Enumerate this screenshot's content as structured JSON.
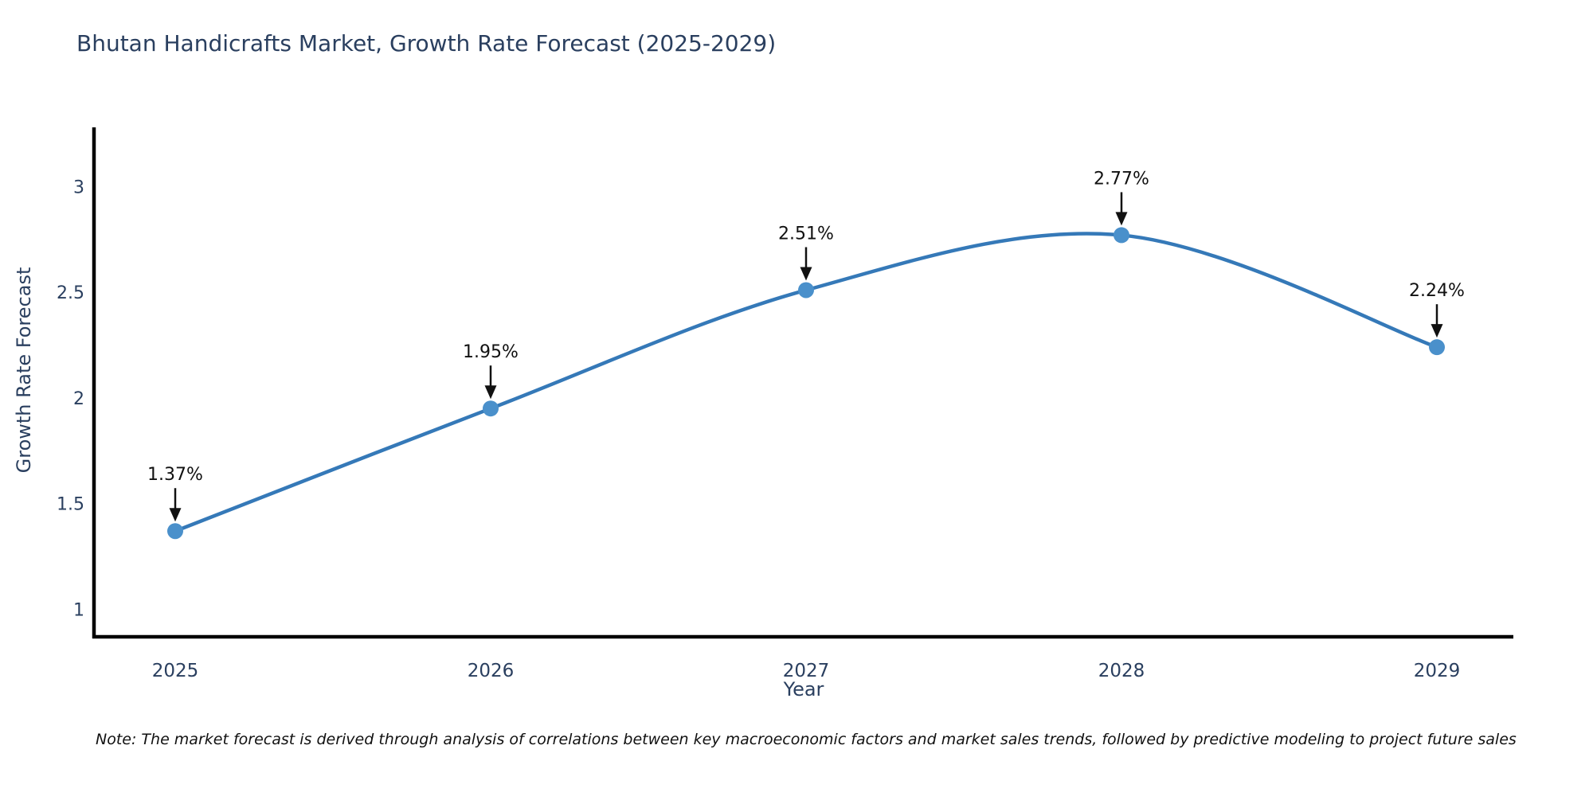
{
  "note": "Note: The market forecast is derived through analysis of correlations between key macroeconomic factors and market sales trends, followed by predictive modeling to project future sales",
  "chart_data": {
    "type": "line",
    "title": "Bhutan Handicrafts Market, Growth Rate Forecast (2025-2029)",
    "xlabel": "Year",
    "ylabel": "Growth Rate Forecast",
    "x": [
      2025,
      2026,
      2027,
      2028,
      2029
    ],
    "values": [
      1.37,
      1.95,
      2.51,
      2.77,
      2.24
    ],
    "point_labels": [
      "1.37%",
      "1.95%",
      "2.51%",
      "2.77%",
      "2.24%"
    ],
    "yticks": [
      1,
      1.5,
      2,
      2.5,
      3
    ],
    "ylim": [
      0.87,
      3.28
    ],
    "grid": false,
    "legend": "none",
    "line_smooth": true,
    "colors": {
      "line": "#3579b8",
      "marker": "#4a90cb",
      "spine": "#000000",
      "tick_label": "#2a3f5f",
      "title": "#2a3f5f",
      "annotation": "#111111"
    }
  }
}
